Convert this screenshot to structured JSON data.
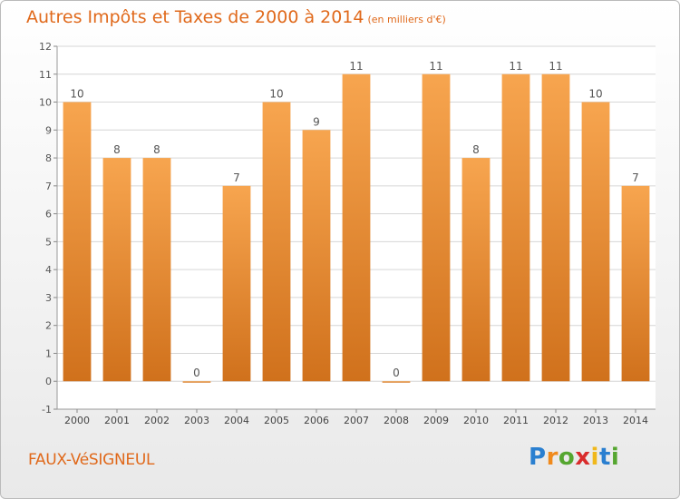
{
  "header": {
    "title": "Autres Impôts et Taxes de 2000 à 2014",
    "unit": "(en milliers d'€)"
  },
  "footer": {
    "commune": "FAUX-VéSIGNEUL",
    "logo": "Proxiti"
  },
  "colors": {
    "bar_light": "#f7a54f",
    "bar_dark": "#d0711c",
    "accent": "#e0691b"
  },
  "chart_data": {
    "type": "bar",
    "title": "Autres Impôts et Taxes de 2000 à 2014",
    "subtitle": "(en milliers d'€)",
    "xlabel": "",
    "ylabel": "",
    "categories": [
      "2000",
      "2001",
      "2002",
      "2003",
      "2004",
      "2005",
      "2006",
      "2007",
      "2008",
      "2009",
      "2010",
      "2011",
      "2012",
      "2013",
      "2014"
    ],
    "values": [
      10,
      8,
      8,
      0,
      7,
      10,
      9,
      11,
      0,
      11,
      8,
      11,
      11,
      10,
      7
    ],
    "y_ticks": [
      "-1",
      "0",
      "1",
      "2",
      "3",
      "4",
      "5",
      "6",
      "7",
      "8",
      "9",
      "10",
      "11",
      "12"
    ],
    "ylim": [
      -1,
      12
    ],
    "grid": true
  }
}
